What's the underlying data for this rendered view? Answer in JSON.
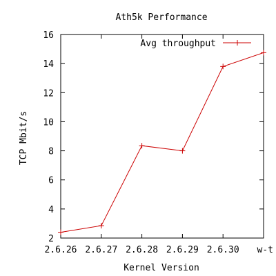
{
  "chart_data": {
    "type": "line",
    "title": "Ath5k Performance",
    "xlabel": "Kernel Version",
    "ylabel": "TCP Mbit/s",
    "categories": [
      "2.6.26",
      "2.6.27",
      "2.6.28",
      "2.6.29",
      "2.6.30",
      "w-t"
    ],
    "ylim": [
      2,
      16
    ],
    "yticks": [
      2,
      4,
      6,
      8,
      10,
      12,
      14,
      16
    ],
    "grid": false,
    "legend_position": "top-right",
    "series": [
      {
        "name": "Avg throughput",
        "color": "#cc0000",
        "values": [
          2.4,
          2.85,
          8.35,
          8.0,
          13.8,
          14.75
        ]
      }
    ]
  }
}
